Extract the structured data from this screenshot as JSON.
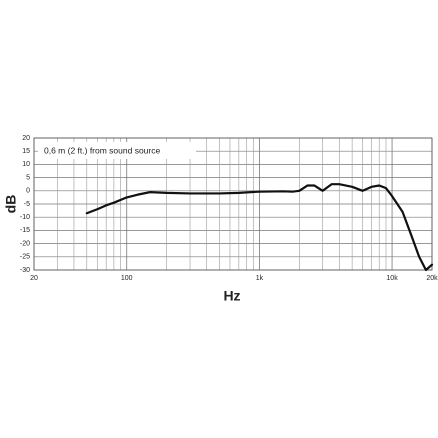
{
  "chart_data": {
    "type": "line",
    "annotation": "0,6 m (2 ft.) from sound source",
    "xlabel": "Hz",
    "ylabel": "dB",
    "xscale": "log",
    "grid": true,
    "color": "#111111",
    "xlim": [
      20,
      20000
    ],
    "ylim": [
      -30,
      20
    ],
    "xticks": [
      20,
      100,
      {
        "value": 1000,
        "label": "1k"
      },
      {
        "value": 10000,
        "label": "10k"
      },
      {
        "value": 20000,
        "label": "20k"
      }
    ],
    "yticks": [
      20,
      15,
      10,
      5,
      0,
      -5,
      -10,
      -15,
      -20,
      -25,
      -30
    ],
    "x": [
      50,
      60,
      70,
      80,
      100,
      120,
      150,
      200,
      300,
      500,
      700,
      1000,
      1500,
      1800,
      2000,
      2300,
      2600,
      3000,
      3500,
      4000,
      5000,
      6000,
      7000,
      8000,
      9000,
      10000,
      12000,
      14000,
      16000,
      18000,
      20000
    ],
    "values": [
      -8.5,
      -7,
      -5.5,
      -4.5,
      -2.5,
      -1.5,
      -0.5,
      -0.8,
      -1,
      -1,
      -0.8,
      -0.3,
      -0.2,
      -0.3,
      0,
      2,
      2,
      0,
      2.5,
      2.5,
      1.5,
      0,
      1.5,
      2,
      1,
      -2,
      -8,
      -17,
      -25,
      -30,
      -28
    ]
  }
}
